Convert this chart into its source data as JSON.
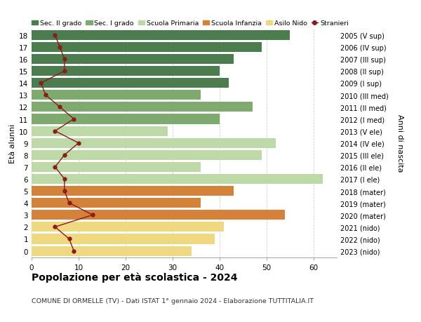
{
  "ages": [
    18,
    17,
    16,
    15,
    14,
    13,
    12,
    11,
    10,
    9,
    8,
    7,
    6,
    5,
    4,
    3,
    2,
    1,
    0
  ],
  "right_labels": [
    "2005 (V sup)",
    "2006 (IV sup)",
    "2007 (III sup)",
    "2008 (II sup)",
    "2009 (I sup)",
    "2010 (III med)",
    "2011 (II med)",
    "2012 (I med)",
    "2013 (V ele)",
    "2014 (IV ele)",
    "2015 (III ele)",
    "2016 (II ele)",
    "2017 (I ele)",
    "2018 (mater)",
    "2019 (mater)",
    "2020 (mater)",
    "2021 (nido)",
    "2022 (nido)",
    "2023 (nido)"
  ],
  "bar_values": [
    55,
    49,
    43,
    40,
    42,
    36,
    47,
    40,
    29,
    52,
    49,
    36,
    62,
    43,
    36,
    54,
    41,
    39,
    34
  ],
  "bar_colors": [
    "#4a7c4e",
    "#4a7c4e",
    "#4a7c4e",
    "#4a7c4e",
    "#4a7c4e",
    "#7dab6e",
    "#7dab6e",
    "#7dab6e",
    "#bdd9a8",
    "#bdd9a8",
    "#bdd9a8",
    "#bdd9a8",
    "#bdd9a8",
    "#d4813a",
    "#d4813a",
    "#d4813a",
    "#f0d880",
    "#f0d880",
    "#f0d880"
  ],
  "stranieri_values": [
    5,
    6,
    7,
    7,
    2,
    3,
    6,
    9,
    5,
    10,
    7,
    5,
    7,
    7,
    8,
    13,
    5,
    8,
    9
  ],
  "stranieri_color": "#8b1a1a",
  "legend_labels": [
    "Sec. II grado",
    "Sec. I grado",
    "Scuola Primaria",
    "Scuola Infanzia",
    "Asilo Nido",
    "Stranieri"
  ],
  "legend_colors": [
    "#4a7c4e",
    "#7dab6e",
    "#bdd9a8",
    "#d4813a",
    "#f0d880",
    "#8b1a1a"
  ],
  "title": "Popolazione per età scolastica - 2024",
  "subtitle": "COMUNE DI ORMELLE (TV) - Dati ISTAT 1° gennaio 2024 - Elaborazione TUTTITALIA.IT",
  "ylabel_left": "Età alunni",
  "ylabel_right": "Anni di nascita",
  "xlim": [
    0,
    65
  ],
  "xticks": [
    0,
    10,
    20,
    30,
    40,
    50,
    60
  ],
  "bg_color": "#ffffff",
  "grid_color": "#d0d0d0",
  "bar_height": 0.82
}
